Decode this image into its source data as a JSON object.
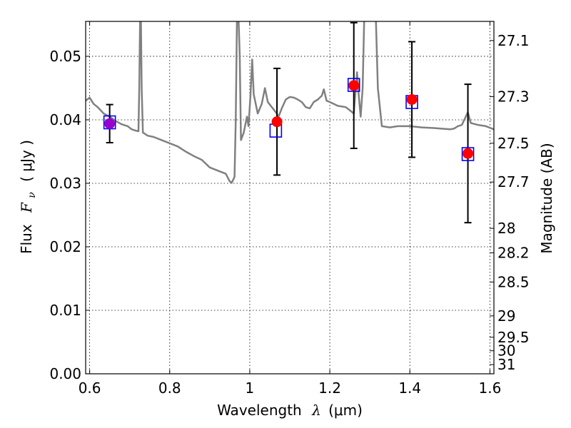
{
  "chart_data": {
    "type": "scatter",
    "xlabel": {
      "text": "Wavelength",
      "symbol": "λ",
      "unit": "(μm)"
    },
    "ylabel": {
      "text": "Flux",
      "symbol": "F",
      "subscript": "ν",
      "unit": "( μJy )"
    },
    "ylabel_right": "Magnitude (AB)",
    "xlim": [
      0.59,
      1.61
    ],
    "ylim": [
      0.0,
      0.0555
    ],
    "xticks": [
      {
        "value": 0.6,
        "label": "0.6"
      },
      {
        "value": 0.8,
        "label": "0.8"
      },
      {
        "value": 1.0,
        "label": "1"
      },
      {
        "value": 1.2,
        "label": "1.2"
      },
      {
        "value": 1.4,
        "label": "1.4"
      },
      {
        "value": 1.6,
        "label": "1.6"
      }
    ],
    "yticks": [
      {
        "value": 0.0,
        "label": "0.00"
      },
      {
        "value": 0.01,
        "label": "0.01"
      },
      {
        "value": 0.02,
        "label": "0.02"
      },
      {
        "value": 0.03,
        "label": "0.03"
      },
      {
        "value": 0.04,
        "label": "0.04"
      },
      {
        "value": 0.05,
        "label": "0.05"
      }
    ],
    "right_ticks": [
      {
        "mag": 27.1,
        "label": "27.1"
      },
      {
        "mag": 27.3,
        "label": "27.3"
      },
      {
        "mag": 27.5,
        "label": "27.5"
      },
      {
        "mag": 27.7,
        "label": "27.7"
      },
      {
        "mag": 28.0,
        "label": "28"
      },
      {
        "mag": 28.2,
        "label": "28.2"
      },
      {
        "mag": 28.5,
        "label": "28.5"
      },
      {
        "mag": 29.0,
        "label": "29"
      },
      {
        "mag": 29.5,
        "label": "29.5"
      },
      {
        "mag": 30.0,
        "label": "30"
      },
      {
        "mag": 31.0,
        "label": "31"
      }
    ],
    "grid": true,
    "template_spectrum": {
      "color": "#808080",
      "points": [
        [
          0.59,
          0.043
        ],
        [
          0.6,
          0.0435
        ],
        [
          0.61,
          0.0425
        ],
        [
          0.62,
          0.042
        ],
        [
          0.635,
          0.041
        ],
        [
          0.65,
          0.0405
        ],
        [
          0.665,
          0.0398
        ],
        [
          0.68,
          0.0393
        ],
        [
          0.695,
          0.039
        ],
        [
          0.705,
          0.0385
        ],
        [
          0.715,
          0.0383
        ],
        [
          0.722,
          0.0382
        ],
        [
          0.724,
          0.045
        ],
        [
          0.726,
          0.056
        ],
        [
          0.728,
          0.056
        ],
        [
          0.73,
          0.045
        ],
        [
          0.733,
          0.038
        ],
        [
          0.745,
          0.0375
        ],
        [
          0.76,
          0.0373
        ],
        [
          0.78,
          0.0368
        ],
        [
          0.8,
          0.0363
        ],
        [
          0.82,
          0.0358
        ],
        [
          0.84,
          0.035
        ],
        [
          0.86,
          0.0343
        ],
        [
          0.88,
          0.0337
        ],
        [
          0.9,
          0.0325
        ],
        [
          0.92,
          0.032
        ],
        [
          0.94,
          0.0315
        ],
        [
          0.95,
          0.0303
        ],
        [
          0.955,
          0.0301
        ],
        [
          0.962,
          0.031
        ],
        [
          0.965,
          0.04
        ],
        [
          0.968,
          0.056
        ],
        [
          0.972,
          0.056
        ],
        [
          0.975,
          0.05
        ],
        [
          0.978,
          0.0368
        ],
        [
          0.985,
          0.038
        ],
        [
          0.993,
          0.0405
        ],
        [
          0.997,
          0.039
        ],
        [
          1.002,
          0.044
        ],
        [
          1.006,
          0.0495
        ],
        [
          1.01,
          0.044
        ],
        [
          1.02,
          0.041
        ],
        [
          1.03,
          0.0425
        ],
        [
          1.038,
          0.045
        ],
        [
          1.045,
          0.0428
        ],
        [
          1.055,
          0.042
        ],
        [
          1.065,
          0.0412
        ],
        [
          1.072,
          0.0405
        ],
        [
          1.08,
          0.0418
        ],
        [
          1.09,
          0.0432
        ],
        [
          1.1,
          0.0436
        ],
        [
          1.11,
          0.0435
        ],
        [
          1.12,
          0.0432
        ],
        [
          1.13,
          0.0428
        ],
        [
          1.14,
          0.042
        ],
        [
          1.15,
          0.0418
        ],
        [
          1.16,
          0.0428
        ],
        [
          1.17,
          0.0432
        ],
        [
          1.18,
          0.0438
        ],
        [
          1.185,
          0.0448
        ],
        [
          1.192,
          0.043
        ],
        [
          1.2,
          0.0428
        ],
        [
          1.22,
          0.0422
        ],
        [
          1.24,
          0.042
        ],
        [
          1.25,
          0.0415
        ],
        [
          1.26,
          0.041
        ],
        [
          1.265,
          0.045
        ],
        [
          1.268,
          0.0475
        ],
        [
          1.272,
          0.044
        ],
        [
          1.277,
          0.0405
        ],
        [
          1.282,
          0.045
        ],
        [
          1.286,
          0.056
        ],
        [
          1.315,
          0.056
        ],
        [
          1.32,
          0.045
        ],
        [
          1.33,
          0.039
        ],
        [
          1.35,
          0.0388
        ],
        [
          1.37,
          0.039
        ],
        [
          1.4,
          0.039
        ],
        [
          1.43,
          0.0388
        ],
        [
          1.46,
          0.0387
        ],
        [
          1.48,
          0.0386
        ],
        [
          1.5,
          0.0385
        ],
        [
          1.51,
          0.0386
        ],
        [
          1.52,
          0.039
        ],
        [
          1.53,
          0.0392
        ],
        [
          1.545,
          0.0412
        ],
        [
          1.552,
          0.0395
        ],
        [
          1.57,
          0.0392
        ],
        [
          1.59,
          0.039
        ],
        [
          1.61,
          0.0385
        ]
      ]
    },
    "series": [
      {
        "marker": "square-open",
        "color": "#0000ff",
        "points": [
          {
            "x": 0.65,
            "y": 0.0396
          },
          {
            "x": 1.065,
            "y": 0.0383
          },
          {
            "x": 1.26,
            "y": 0.0455
          },
          {
            "x": 1.405,
            "y": 0.0428
          },
          {
            "x": 1.545,
            "y": 0.0346
          }
        ]
      },
      {
        "marker": "circle-filled",
        "color": "#ff0000",
        "points": [
          {
            "x": 0.65,
            "y": 0.0394,
            "err": 0.003,
            "color": "#9900cc"
          },
          {
            "x": 1.068,
            "y": 0.0397,
            "err": 0.0084
          },
          {
            "x": 1.26,
            "y": 0.0454,
            "err": 0.0099
          },
          {
            "x": 1.405,
            "y": 0.0432,
            "err": 0.0091
          },
          {
            "x": 1.545,
            "y": 0.0347,
            "err": 0.0109
          }
        ]
      }
    ]
  }
}
